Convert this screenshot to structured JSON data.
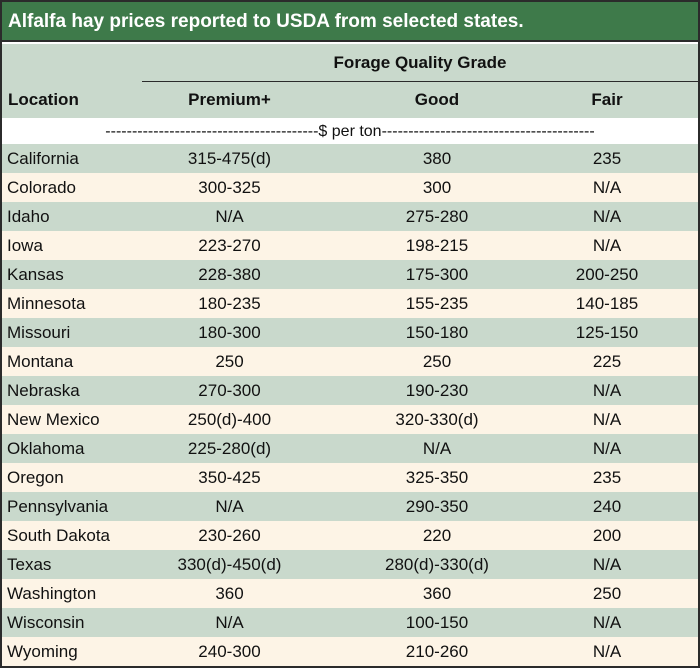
{
  "title": "Alfalfa hay prices reported to USDA from selected states.",
  "header": {
    "group": "Forage Quality Grade",
    "location": "Location",
    "premium": "Premium+",
    "good": "Good",
    "fair": "Fair"
  },
  "unit_line": "----------------------------------------$ per ton----------------------------------------",
  "rows": [
    {
      "location": "California",
      "premium": "315-475(d)",
      "good": "380",
      "fair": "235"
    },
    {
      "location": "Colorado",
      "premium": "300-325",
      "good": "300",
      "fair": "N/A"
    },
    {
      "location": "Idaho",
      "premium": "N/A",
      "good": "275-280",
      "fair": "N/A"
    },
    {
      "location": "Iowa",
      "premium": "223-270",
      "good": "198-215",
      "fair": "N/A"
    },
    {
      "location": "Kansas",
      "premium": "228-380",
      "good": "175-300",
      "fair": "200-250"
    },
    {
      "location": "Minnesota",
      "premium": "180-235",
      "good": "155-235",
      "fair": "140-185"
    },
    {
      "location": "Missouri",
      "premium": "180-300",
      "good": "150-180",
      "fair": "125-150"
    },
    {
      "location": "Montana",
      "premium": "250",
      "good": "250",
      "fair": "225"
    },
    {
      "location": "Nebraska",
      "premium": "270-300",
      "good": "190-230",
      "fair": "N/A"
    },
    {
      "location": "New Mexico",
      "premium": "250(d)-400",
      "good": "320-330(d)",
      "fair": "N/A"
    },
    {
      "location": "Oklahoma",
      "premium": "225-280(d)",
      "good": "N/A",
      "fair": "N/A"
    },
    {
      "location": "Oregon",
      "premium": "350-425",
      "good": "325-350",
      "fair": "235"
    },
    {
      "location": "Pennsylvania",
      "premium": "N/A",
      "good": "290-350",
      "fair": "240"
    },
    {
      "location": "South Dakota",
      "premium": "230-260",
      "good": "220",
      "fair": "200"
    },
    {
      "location": "Texas",
      "premium": "330(d)-450(d)",
      "good": "280(d)-330(d)",
      "fair": "N/A"
    },
    {
      "location": "Washington",
      "premium": "360",
      "good": "360",
      "fair": "250"
    },
    {
      "location": "Wisconsin",
      "premium": "N/A",
      "good": "100-150",
      "fair": "N/A"
    },
    {
      "location": "Wyoming",
      "premium": "240-300",
      "good": "210-260",
      "fair": "N/A"
    }
  ],
  "colors": {
    "title_bg": "#3e7a4a",
    "shade_bg": "#c9d9cc",
    "plain_bg": "#fdf4e6"
  }
}
